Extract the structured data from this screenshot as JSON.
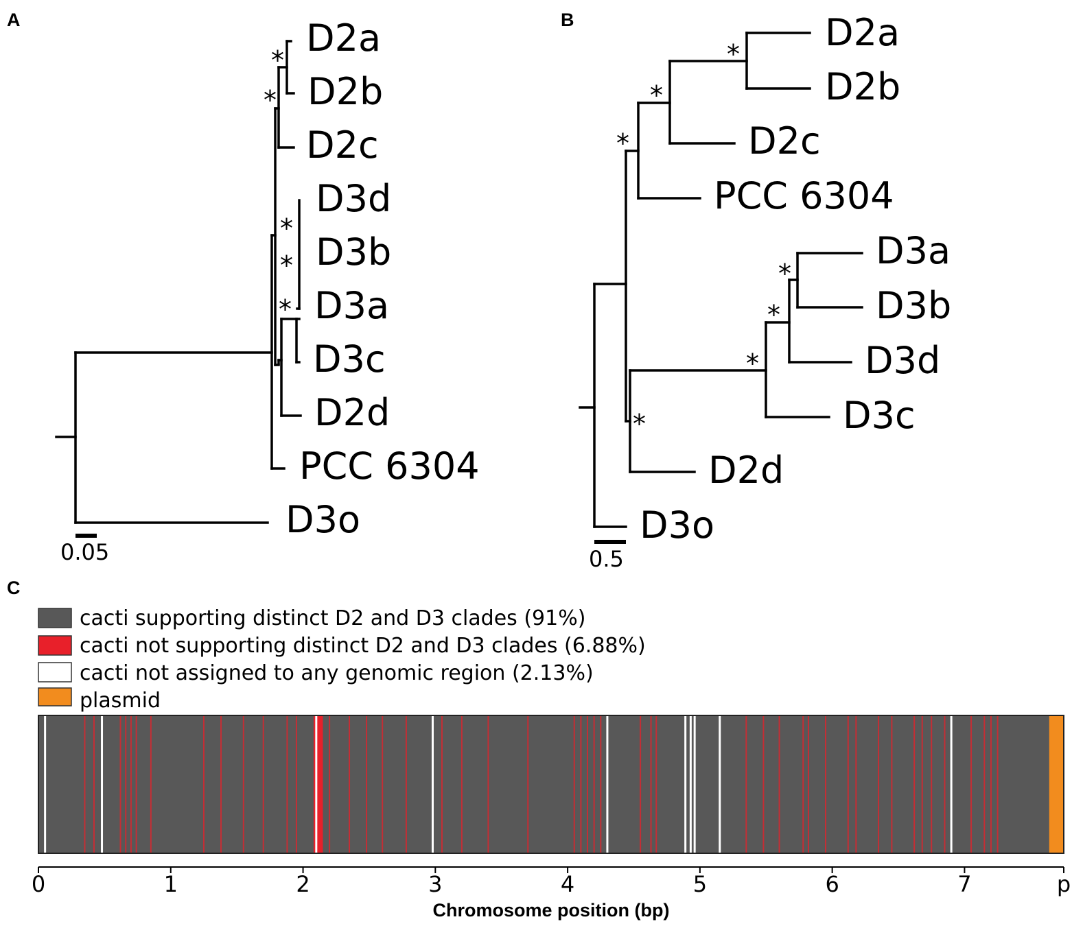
{
  "panels": {
    "a": {
      "label": "A",
      "scale": "0.05",
      "leaves": [
        "D2a",
        "D2b",
        "D2c",
        "D3d",
        "D3b",
        "D3a",
        "D3c",
        "D2d",
        "PCC 6304",
        "D3o"
      ],
      "support_marker": "*"
    },
    "b": {
      "label": "B",
      "scale": "0.5",
      "leaves": [
        "D2a",
        "D2b",
        "D2c",
        "PCC 6304",
        "D3a",
        "D3b",
        "D3d",
        "D3c",
        "D2d",
        "D3o"
      ],
      "support_marker": "*"
    },
    "c": {
      "label": "C"
    }
  },
  "legend": [
    {
      "text": "cacti supporting distinct D2 and D3 clades (91%)",
      "color": "#585858"
    },
    {
      "text": "cacti not supporting distinct D2 and D3 clades (6.88%)",
      "color": "#e8202a"
    },
    {
      "text": "cacti not assigned to any genomic region (2.13%)",
      "color": "#ffffff"
    },
    {
      "text": "plasmid",
      "color": "#f28c1e"
    }
  ],
  "chart_data": {
    "type": "genome_track",
    "xlabel": "Chromosome position (bp)",
    "tick_labels": [
      "0",
      "1",
      "2",
      "3",
      "4",
      "5",
      "6",
      "7",
      "p"
    ],
    "tick_values": [
      0,
      1,
      2,
      3,
      4,
      5,
      6,
      7,
      7.75
    ],
    "xlim": [
      0,
      7.75
    ],
    "base_color": "#585858",
    "plasmid_color": "#f28c1e",
    "plasmid_range": [
      7.64,
      7.75
    ],
    "not_supporting_color": "#e8202a",
    "not_supporting_positions": [
      0.35,
      0.42,
      0.62,
      0.66,
      0.7,
      0.74,
      0.85,
      1.25,
      1.38,
      1.55,
      1.7,
      1.88,
      1.95,
      2.2,
      2.35,
      2.48,
      2.6,
      2.78,
      3.05,
      3.2,
      3.4,
      3.7,
      4.05,
      4.1,
      4.15,
      4.2,
      4.25,
      4.55,
      4.63,
      4.67,
      5.35,
      5.48,
      5.6,
      5.78,
      5.82,
      5.95,
      6.12,
      6.18,
      6.35,
      6.45,
      6.62,
      6.68,
      6.75,
      6.85,
      7.05,
      7.15,
      7.2,
      7.25
    ],
    "not_supporting_block": [
      2.08,
      2.15
    ],
    "not_assigned_color": "#ffffff",
    "not_assigned_positions": [
      0.05,
      0.48,
      2.1,
      2.98,
      4.3,
      4.89,
      4.93,
      4.96,
      5.15,
      6.9
    ]
  }
}
